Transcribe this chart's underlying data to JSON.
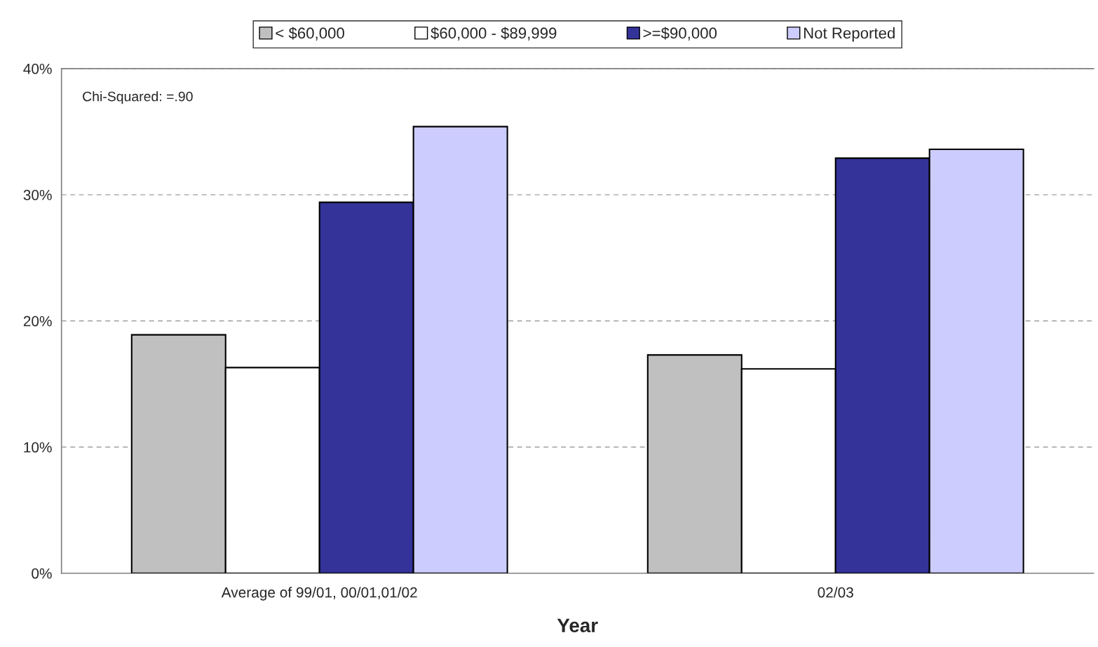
{
  "chart_data": {
    "type": "bar",
    "xlabel": "Year",
    "categories": [
      "Average of 99/01, 00/01,01/02",
      "02/03"
    ],
    "series": [
      {
        "name": "< $60,000",
        "color": "#c0c0c0",
        "values": [
          18.9,
          17.3
        ]
      },
      {
        "name": "$60,000 - $89,999",
        "color": "#ffffff",
        "values": [
          16.3,
          16.2
        ]
      },
      {
        "name": ">=$90,000",
        "color": "#333399",
        "values": [
          29.4,
          32.9
        ]
      },
      {
        "name": "Not Reported",
        "color": "#ccccff",
        "values": [
          35.4,
          33.6
        ]
      }
    ],
    "ylim": [
      0,
      40
    ],
    "yticks": [
      {
        "value": 0,
        "label": "0%"
      },
      {
        "value": 10,
        "label": "10%"
      },
      {
        "value": 20,
        "label": "20%"
      },
      {
        "value": 30,
        "label": "30%"
      },
      {
        "value": 40,
        "label": "40%"
      }
    ],
    "grid": "y",
    "legend": "top",
    "annotations": [
      "Chi-Squared: =.90"
    ]
  }
}
